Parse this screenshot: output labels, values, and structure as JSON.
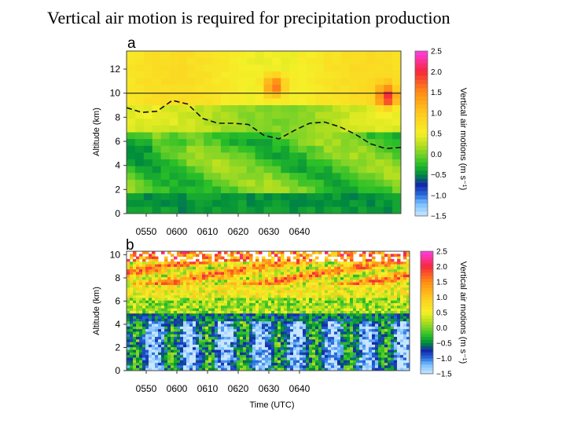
{
  "title": "Vertical air motion is required for precipitation production",
  "chart_data": [
    {
      "type": "heatmap",
      "panel": "a",
      "ylabel": "Altitude (km)",
      "yticks": [
        "0",
        "2",
        "4",
        "6",
        "8",
        "10",
        "12"
      ],
      "ylim": [
        0,
        13.5
      ],
      "xticks": [
        "0550",
        "0600",
        "0610",
        "0620",
        "0630",
        "0640"
      ],
      "horizontal_line_km": 10,
      "dashed_contour_km": [
        8.8,
        8.4,
        8.5,
        9.4,
        9.1,
        7.9,
        7.5,
        7.5,
        7.4,
        6.5,
        6.2,
        6.9,
        7.5,
        7.6,
        7.2,
        6.6,
        5.8,
        5.4,
        5.5
      ],
      "colorbar_label": "Vertical air motions (m s⁻¹)",
      "colorbar_ticks": [
        "2.5",
        "2.0",
        "1.5",
        "1.0",
        "0.5",
        "0.0",
        "−0.5",
        "−1.0",
        "−1.5"
      ],
      "vmin": -1.5,
      "vmax": 2.5
    },
    {
      "type": "heatmap",
      "panel": "b",
      "xlabel": "Time (UTC)",
      "ylabel": "Altitude (km)",
      "yticks": [
        "0",
        "2",
        "4",
        "6",
        "8",
        "10"
      ],
      "ylim": [
        0,
        10.3
      ],
      "xticks": [
        "0550",
        "0600",
        "0610",
        "0620",
        "0630",
        "0640"
      ],
      "colorbar_label": "Vertical air motions (m s⁻¹)",
      "colorbar_ticks": [
        "2.5",
        "2.0",
        "1.5",
        "1.0",
        "0.5",
        "0.0",
        "−0.5",
        "−1.0",
        "−1.5"
      ],
      "vmin": -1.5,
      "vmax": 2.5
    }
  ]
}
